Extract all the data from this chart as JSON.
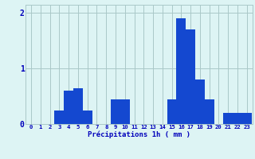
{
  "categories": [
    0,
    1,
    2,
    3,
    4,
    5,
    6,
    7,
    8,
    9,
    10,
    11,
    12,
    13,
    14,
    15,
    16,
    17,
    18,
    19,
    20,
    21,
    22,
    23
  ],
  "values": [
    0,
    0,
    0,
    0.25,
    0.6,
    0.65,
    0.25,
    0,
    0,
    0.45,
    0.45,
    0,
    0,
    0,
    0,
    0.45,
    1.9,
    1.7,
    0.8,
    0.45,
    0,
    0.2,
    0.2,
    0.2
  ],
  "bar_color": "#1448d0",
  "bg_color": "#ddf4f4",
  "grid_color": "#aac8c8",
  "text_color": "#0000bb",
  "xlabel": "Précipitations 1h ( mm )",
  "yticks": [
    0,
    1,
    2
  ],
  "ylim": [
    0,
    2.15
  ],
  "xlim": [
    -0.6,
    23.6
  ]
}
